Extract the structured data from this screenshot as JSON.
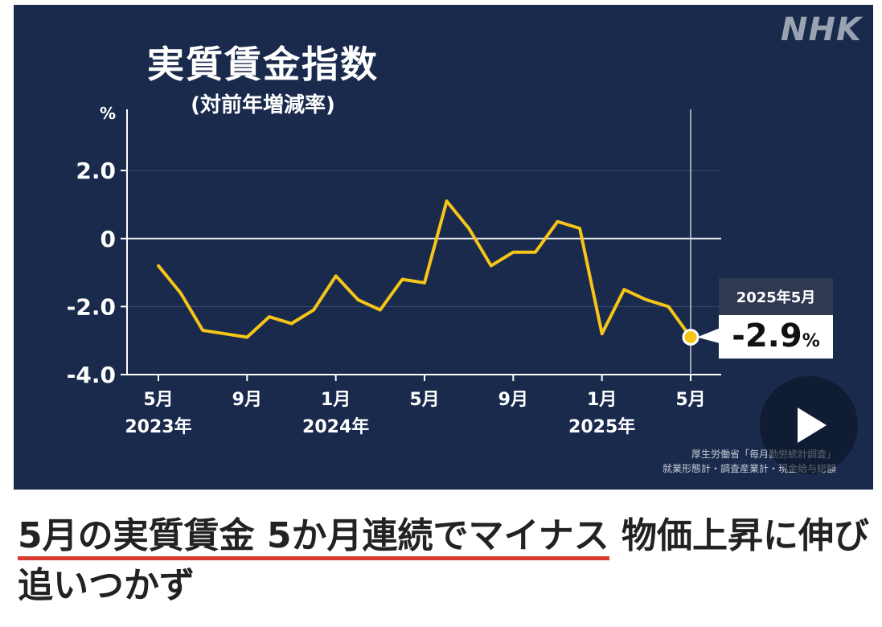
{
  "logo": "NHK",
  "chart_data": {
    "type": "line",
    "title": "実質賃金指数",
    "subtitle": "(対前年増減率)",
    "ylabel": "%",
    "ylim": [
      -4.0,
      3.8
    ],
    "yticks": [
      2.0,
      0,
      -2.0,
      -4.0
    ],
    "ytick_labels": [
      "2.0",
      "0",
      "-2.0",
      "-4.0"
    ],
    "x_start": "2023-05",
    "x_end": "2025-05",
    "x_tick_positions": [
      "2023-05",
      "2023-09",
      "2024-01",
      "2024-05",
      "2024-09",
      "2025-01",
      "2025-05"
    ],
    "x_tick_labels": [
      {
        "month": "5月",
        "year": "2023年"
      },
      {
        "month": "9月",
        "year": ""
      },
      {
        "month": "1月",
        "year": "2024年"
      },
      {
        "month": "5月",
        "year": ""
      },
      {
        "month": "9月",
        "year": ""
      },
      {
        "month": "1月",
        "year": "2025年"
      },
      {
        "month": "5月",
        "year": ""
      }
    ],
    "grid": true,
    "line_color": "#f5c518",
    "series": [
      {
        "x": [
          "2023-05",
          "2023-06",
          "2023-07",
          "2023-08",
          "2023-09",
          "2023-10",
          "2023-11",
          "2023-12",
          "2024-01",
          "2024-02",
          "2024-03",
          "2024-04",
          "2024-05",
          "2024-06",
          "2024-07",
          "2024-08",
          "2024-09",
          "2024-10",
          "2024-11",
          "2024-12",
          "2025-01",
          "2025-02",
          "2025-03",
          "2025-04",
          "2025-05"
        ],
        "values": [
          -0.8,
          -1.6,
          -2.7,
          -2.8,
          -2.9,
          -2.3,
          -2.5,
          -2.1,
          -1.1,
          -1.8,
          -2.1,
          -1.2,
          -1.3,
          1.1,
          0.3,
          -0.8,
          -0.4,
          -0.4,
          0.5,
          0.3,
          -2.8,
          -1.5,
          -1.8,
          -2.0,
          -2.9
        ]
      }
    ],
    "callout": {
      "date": "2025年5月",
      "value": "-2.9",
      "unit": "%"
    }
  },
  "source_lines": [
    "厚生労働省「毎月勤労統計調査」",
    "就業形態計・調査産業計・現金給与総額"
  ],
  "headline": {
    "linked": "5月の実質賃金 5か月連続でマイナス",
    "rest": " 物価上昇に伸び追いつかず"
  }
}
